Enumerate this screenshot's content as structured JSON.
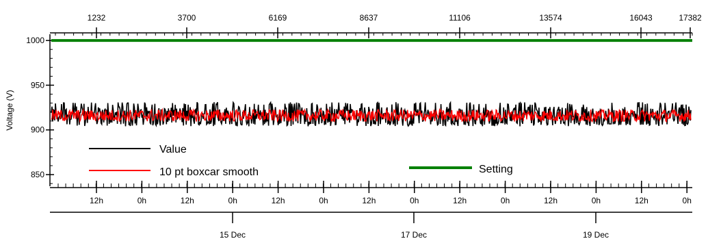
{
  "chart_data": {
    "type": "line",
    "title": "",
    "ylabel": "Voltage (V)",
    "ylim": [
      837,
      1007
    ],
    "yticks": [
      850,
      900,
      950,
      1000
    ],
    "top_axis": {
      "ticks": [
        1232,
        3700,
        6169,
        8637,
        11106,
        13574,
        16043,
        17382
      ]
    },
    "time_axis": {
      "hour_labels": [
        "12h",
        "0h",
        "12h",
        "0h",
        "12h",
        "0h",
        "12h",
        "0h",
        "12h",
        "0h",
        "12h",
        "0h",
        "12h",
        "0h"
      ],
      "date_labels": [
        "15 Dec",
        "17 Dec",
        "19 Dec"
      ]
    },
    "series": [
      {
        "name": "Value",
        "color": "#000000",
        "center": 916,
        "band": [
          904,
          931
        ],
        "note_values": "noisy signal fluctuating around ~916 V"
      },
      {
        "name": "10 pt boxcar smooth",
        "color": "#ff0000",
        "center": 916,
        "band": [
          909,
          924
        ]
      },
      {
        "name": "Setting",
        "color": "#008000",
        "value": 1000
      }
    ],
    "legend": {
      "value_label": "Value",
      "smooth_label": "10 pt boxcar smooth",
      "setting_label": "Setting"
    }
  }
}
